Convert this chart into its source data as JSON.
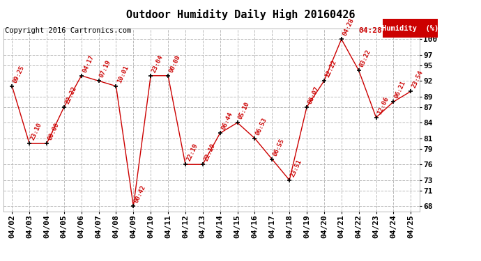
{
  "title": "Outdoor Humidity Daily High 20160426",
  "copyright": "Copyright 2016 Cartronics.com",
  "legend_label": "Humidity  (%)",
  "ylabel_right_ticks": [
    68,
    71,
    73,
    76,
    79,
    81,
    84,
    87,
    89,
    92,
    95,
    97,
    100
  ],
  "dates": [
    "04/02",
    "04/03",
    "04/04",
    "04/05",
    "04/06",
    "04/07",
    "04/08",
    "04/09",
    "04/10",
    "04/11",
    "04/12",
    "04/13",
    "04/14",
    "04/15",
    "04/16",
    "04/17",
    "04/18",
    "04/19",
    "04/20",
    "04/21",
    "04/22",
    "04/23",
    "04/24",
    "04/25"
  ],
  "values": [
    91,
    80,
    80,
    87,
    93,
    92,
    91,
    68,
    93,
    93,
    76,
    76,
    82,
    84,
    81,
    77,
    73,
    87,
    92,
    100,
    94,
    85,
    88,
    90
  ],
  "times": [
    "09:25",
    "23:10",
    "00:00",
    "22:22",
    "04:17",
    "07:19",
    "10:01",
    "00:42",
    "23:04",
    "00:00",
    "22:19",
    "22:19",
    "06:44",
    "05:10",
    "06:53",
    "06:55",
    "23:51",
    "06:07",
    "12:22",
    "04:28",
    "03:22",
    "12:06",
    "06:21",
    "23:54"
  ],
  "line_color": "#cc0000",
  "marker_color": "#000000",
  "label_color": "#cc0000",
  "grid_color": "#bbbbbb",
  "bg_color": "#ffffff",
  "title_fontsize": 11,
  "copyright_fontsize": 7.5,
  "tick_fontsize": 8,
  "label_fontsize": 6.5,
  "legend_bg": "#cc0000",
  "legend_text_color": "#ffffff",
  "ylim_min": 67,
  "ylim_max": 102
}
